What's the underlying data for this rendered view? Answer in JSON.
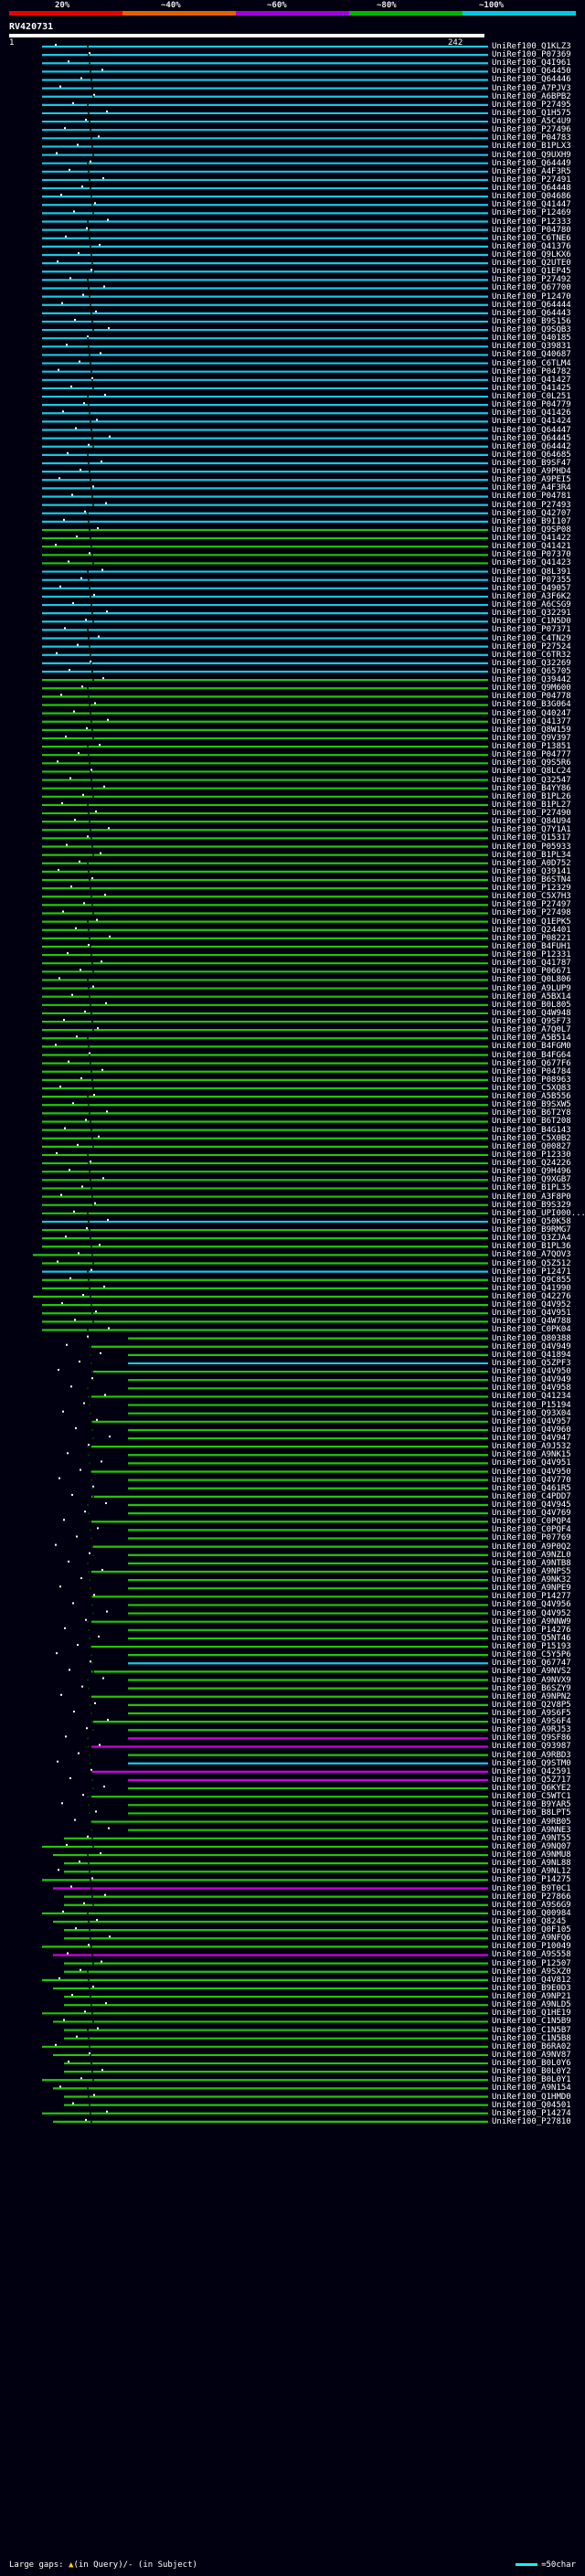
{
  "scale": {
    "ticks": [
      "20%",
      "~40%",
      "~60%",
      "~80%",
      "~100%"
    ],
    "colors": [
      "#e60000",
      "#e66000",
      "#a000e0",
      "#00b400",
      "#00c8e0"
    ]
  },
  "query": {
    "name": "RV420731",
    "start": "1",
    "end": "242"
  },
  "hits": [
    {
      "label": "UniRef100_Q1KLZ3",
      "color": "cyan"
    },
    {
      "label": "UniRef100_P07369",
      "color": "cyan"
    },
    {
      "label": "UniRef100_Q4I961",
      "color": "cyan"
    },
    {
      "label": "UniRef100_Q64450",
      "color": "cyan"
    },
    {
      "label": "UniRef100_Q64446",
      "color": "cyan"
    },
    {
      "label": "UniRef100_A7PJV3",
      "color": "cyan"
    },
    {
      "label": "UniRef100_A6BPB2",
      "color": "cyan"
    },
    {
      "label": "UniRef100_P27495",
      "color": "cyan"
    },
    {
      "label": "UniRef100_Q1H575",
      "color": "cyan"
    },
    {
      "label": "UniRef100_A5C4U9",
      "color": "cyan"
    },
    {
      "label": "UniRef100_P27496",
      "color": "cyan"
    },
    {
      "label": "UniRef100_P04783",
      "color": "cyan"
    },
    {
      "label": "UniRef100_B1PLX3",
      "color": "cyan"
    },
    {
      "label": "UniRef100_Q9UXH9",
      "color": "cyan"
    },
    {
      "label": "UniRef100_Q64449",
      "color": "cyan"
    },
    {
      "label": "UniRef100_A4F3R5",
      "color": "cyan"
    },
    {
      "label": "UniRef100_P27491",
      "color": "cyan"
    },
    {
      "label": "UniRef100_Q64448",
      "color": "cyan"
    },
    {
      "label": "UniRef100_Q04686",
      "color": "cyan"
    },
    {
      "label": "UniRef100_Q41447",
      "color": "cyan"
    },
    {
      "label": "UniRef100_P12469",
      "color": "cyan"
    },
    {
      "label": "UniRef100_P12333",
      "color": "cyan"
    },
    {
      "label": "UniRef100_P04780",
      "color": "cyan"
    },
    {
      "label": "UniRef100_C6TNE6",
      "color": "cyan"
    },
    {
      "label": "UniRef100_Q41376",
      "color": "cyan"
    },
    {
      "label": "UniRef100_Q9LKX6",
      "color": "cyan"
    },
    {
      "label": "UniRef100_Q2UTE0",
      "color": "cyan"
    },
    {
      "label": "UniRef100_Q1EP45",
      "color": "cyan"
    },
    {
      "label": "UniRef100_P27492",
      "color": "cyan"
    },
    {
      "label": "UniRef100_Q67700",
      "color": "cyan"
    },
    {
      "label": "UniRef100_P12470",
      "color": "cyan"
    },
    {
      "label": "UniRef100_Q64444",
      "color": "cyan"
    },
    {
      "label": "UniRef100_Q64443",
      "color": "cyan"
    },
    {
      "label": "UniRef100_B9S156",
      "color": "cyan"
    },
    {
      "label": "UniRef100_Q9SQB3",
      "color": "cyan"
    },
    {
      "label": "UniRef100_Q40185",
      "color": "cyan"
    },
    {
      "label": "UniRef100_Q39831",
      "color": "cyan"
    },
    {
      "label": "UniRef100_Q40687",
      "color": "cyan"
    },
    {
      "label": "UniRef100_C6TLM4",
      "color": "cyan"
    },
    {
      "label": "UniRef100_P04782",
      "color": "cyan"
    },
    {
      "label": "UniRef100_Q41427",
      "color": "cyan"
    },
    {
      "label": "UniRef100_Q41425",
      "color": "cyan"
    },
    {
      "label": "UniRef100_C0L251",
      "color": "cyan"
    },
    {
      "label": "UniRef100_P04779",
      "color": "cyan"
    },
    {
      "label": "UniRef100_Q41426",
      "color": "cyan"
    },
    {
      "label": "UniRef100_Q41424",
      "color": "cyan"
    },
    {
      "label": "UniRef100_Q64447",
      "color": "cyan"
    },
    {
      "label": "UniRef100_Q64445",
      "color": "cyan"
    },
    {
      "label": "UniRef100_Q64442",
      "color": "cyan"
    },
    {
      "label": "UniRef100_Q64685",
      "color": "cyan"
    },
    {
      "label": "UniRef100_B9SF47",
      "color": "cyan"
    },
    {
      "label": "UniRef100_A9PHD4",
      "color": "cyan"
    },
    {
      "label": "UniRef100_A9PEI5",
      "color": "cyan"
    },
    {
      "label": "UniRef100_A4F3R4",
      "color": "cyan"
    },
    {
      "label": "UniRef100_P04781",
      "color": "cyan"
    },
    {
      "label": "UniRef100_P27493",
      "color": "cyan"
    },
    {
      "label": "UniRef100_Q42707",
      "color": "cyan"
    },
    {
      "label": "UniRef100_B9I107",
      "color": "cyan"
    },
    {
      "label": "UniRef100_Q9SP08",
      "color": "green"
    },
    {
      "label": "UniRef100_Q41422",
      "color": "green"
    },
    {
      "label": "UniRef100_Q41421",
      "color": "green"
    },
    {
      "label": "UniRef100_P07370",
      "color": "green"
    },
    {
      "label": "UniRef100_Q41423",
      "color": "green"
    },
    {
      "label": "UniRef100_Q8L391",
      "color": "cyan"
    },
    {
      "label": "UniRef100_P07355",
      "color": "cyan"
    },
    {
      "label": "UniRef100_Q49057",
      "color": "cyan"
    },
    {
      "label": "UniRef100_A3F6K2",
      "color": "cyan"
    },
    {
      "label": "UniRef100_A6CSG9",
      "color": "cyan"
    },
    {
      "label": "UniRef100_Q32291",
      "color": "cyan"
    },
    {
      "label": "UniRef100_C1N5D0",
      "color": "cyan"
    },
    {
      "label": "UniRef100_P07371",
      "color": "cyan"
    },
    {
      "label": "UniRef100_C4TN29",
      "color": "cyan"
    },
    {
      "label": "UniRef100_P27524",
      "color": "cyan"
    },
    {
      "label": "UniRef100_C6TR32",
      "color": "cyan"
    },
    {
      "label": "UniRef100_Q32269",
      "color": "cyan"
    },
    {
      "label": "UniRef100_Q65705",
      "color": "cyan"
    },
    {
      "label": "UniRef100_Q39442",
      "color": "green"
    },
    {
      "label": "UniRef100_Q9M600",
      "color": "green"
    },
    {
      "label": "UniRef100_P04778",
      "color": "green"
    },
    {
      "label": "UniRef100_B3G064",
      "color": "green"
    },
    {
      "label": "UniRef100_Q40247",
      "color": "green"
    },
    {
      "label": "UniRef100_Q41377",
      "color": "green"
    },
    {
      "label": "UniRef100_Q8W159",
      "color": "green"
    },
    {
      "label": "UniRef100_Q9V397",
      "color": "green"
    },
    {
      "label": "UniRef100_P13851",
      "color": "green"
    },
    {
      "label": "UniRef100_P04777",
      "color": "green"
    },
    {
      "label": "UniRef100_Q9S5R6",
      "color": "green"
    },
    {
      "label": "UniRef100_Q8LC24",
      "color": "green"
    },
    {
      "label": "UniRef100_Q32547",
      "color": "green"
    },
    {
      "label": "UniRef100_B4YY86",
      "color": "green"
    },
    {
      "label": "UniRef100_B1PL26",
      "color": "green"
    },
    {
      "label": "UniRef100_B1PL27",
      "color": "green"
    },
    {
      "label": "UniRef100_P27490",
      "color": "green"
    },
    {
      "label": "UniRef100_Q84U94",
      "color": "green"
    },
    {
      "label": "UniRef100_Q7Y1A1",
      "color": "green"
    },
    {
      "label": "UniRef100_Q15317",
      "color": "green"
    },
    {
      "label": "UniRef100_P05933",
      "color": "green"
    },
    {
      "label": "UniRef100_B1PL34",
      "color": "green"
    },
    {
      "label": "UniRef100_A0D752",
      "color": "green"
    },
    {
      "label": "UniRef100_Q39141",
      "color": "green"
    },
    {
      "label": "UniRef100_B6STN4",
      "color": "green"
    },
    {
      "label": "UniRef100_P12329",
      "color": "green"
    },
    {
      "label": "UniRef100_C5X7H3",
      "color": "green"
    },
    {
      "label": "UniRef100_P27497",
      "color": "green"
    },
    {
      "label": "UniRef100_P27498",
      "color": "green"
    },
    {
      "label": "UniRef100_Q1EPK5",
      "color": "green"
    },
    {
      "label": "UniRef100_Q24401",
      "color": "green"
    },
    {
      "label": "UniRef100_P08221",
      "color": "green"
    },
    {
      "label": "UniRef100_B4FUH1",
      "color": "green"
    },
    {
      "label": "UniRef100_P12331",
      "color": "green"
    },
    {
      "label": "UniRef100_Q41787",
      "color": "green"
    },
    {
      "label": "UniRef100_P06671",
      "color": "green"
    },
    {
      "label": "UniRef100_Q0L806",
      "color": "green"
    },
    {
      "label": "UniRef100_A9LUP9",
      "color": "green"
    },
    {
      "label": "UniRef100_A5BX14",
      "color": "green"
    },
    {
      "label": "UniRef100_B0L805",
      "color": "green"
    },
    {
      "label": "UniRef100_Q4W948",
      "color": "green"
    },
    {
      "label": "UniRef100_Q9SF73",
      "color": "green"
    },
    {
      "label": "UniRef100_A7Q0L7",
      "color": "green"
    },
    {
      "label": "UniRef100_A5B514",
      "color": "green"
    },
    {
      "label": "UniRef100_B4FGM0",
      "color": "green"
    },
    {
      "label": "UniRef100_B4FG64",
      "color": "green"
    },
    {
      "label": "UniRef100_Q677F6",
      "color": "green"
    },
    {
      "label": "UniRef100_P04784",
      "color": "green"
    },
    {
      "label": "UniRef100_P08963",
      "color": "green"
    },
    {
      "label": "UniRef100_C5XQ83",
      "color": "green"
    },
    {
      "label": "UniRef100_A5B556",
      "color": "green"
    },
    {
      "label": "UniRef100_B9SXW5",
      "color": "green"
    },
    {
      "label": "UniRef100_B6T2Y8",
      "color": "green"
    },
    {
      "label": "UniRef100_B6T208",
      "color": "green"
    },
    {
      "label": "UniRef100_B4G143",
      "color": "green"
    },
    {
      "label": "UniRef100_C5X0B2",
      "color": "green"
    },
    {
      "label": "UniRef100_Q00827",
      "color": "green"
    },
    {
      "label": "UniRef100_P12330",
      "color": "green"
    },
    {
      "label": "UniRef100_Q24226",
      "color": "green"
    },
    {
      "label": "UniRef100_Q9H496",
      "color": "green"
    },
    {
      "label": "UniRef100_Q9XGB7",
      "color": "green"
    },
    {
      "label": "UniRef100_B1PL35",
      "color": "green"
    },
    {
      "label": "UniRef100_A3F8P0",
      "color": "green"
    },
    {
      "label": "UniRef100_B9S329",
      "color": "green"
    },
    {
      "label": "UniRef100_UPI000...",
      "color": "green"
    },
    {
      "label": "UniRef100_Q50K58",
      "color": "cyan"
    },
    {
      "label": "UniRef100_B9RMG7",
      "color": "green"
    },
    {
      "label": "UniRef100_Q3ZJA4",
      "color": "green"
    },
    {
      "label": "UniRef100_B1PL36",
      "color": "green"
    },
    {
      "label": "UniRef100_A7QOV3",
      "color": "green"
    },
    {
      "label": "UniRef100_Q5Z512",
      "color": "green"
    },
    {
      "label": "UniRef100_P12471",
      "color": "cyan"
    },
    {
      "label": "UniRef100_Q9C855",
      "color": "green"
    },
    {
      "label": "UniRef100_Q41990",
      "color": "green"
    },
    {
      "label": "UniRef100_Q42276",
      "color": "green"
    },
    {
      "label": "UniRef100_Q4V952",
      "color": "green"
    },
    {
      "label": "UniRef100_Q4V951",
      "color": "green"
    },
    {
      "label": "UniRef100_Q4W788",
      "color": "green"
    },
    {
      "label": "UniRef100_C0PK04",
      "color": "green"
    },
    {
      "label": "UniRef100_Q80388",
      "color": "green"
    },
    {
      "label": "UniRef100_Q4V949",
      "color": "green"
    },
    {
      "label": "UniRef100_Q41894",
      "color": "green"
    },
    {
      "label": "UniRef100_Q5ZPF3",
      "color": "cyan"
    },
    {
      "label": "UniRef100_Q4V950",
      "color": "green"
    },
    {
      "label": "UniRef100_Q4V949",
      "color": "green"
    },
    {
      "label": "UniRef100_Q4V958",
      "color": "green"
    },
    {
      "label": "UniRef100_Q41234",
      "color": "green"
    },
    {
      "label": "UniRef100_P15194",
      "color": "green"
    },
    {
      "label": "UniRef100_Q93X04",
      "color": "green"
    },
    {
      "label": "UniRef100_Q4V957",
      "color": "green"
    },
    {
      "label": "UniRef100_Q4V960",
      "color": "green"
    },
    {
      "label": "UniRef100_Q4V947",
      "color": "green"
    },
    {
      "label": "UniRef100_A9J532",
      "color": "green"
    },
    {
      "label": "UniRef100_A9NK15",
      "color": "green"
    },
    {
      "label": "UniRef100_Q4V951",
      "color": "green"
    },
    {
      "label": "UniRef100_Q4V950",
      "color": "green"
    },
    {
      "label": "UniRef100_Q4V770",
      "color": "green"
    },
    {
      "label": "UniRef100_Q461R5",
      "color": "green"
    },
    {
      "label": "UniRef100_C4PDD7",
      "color": "green"
    },
    {
      "label": "UniRef100_Q4V945",
      "color": "green"
    },
    {
      "label": "UniRef100_Q4V769",
      "color": "green"
    },
    {
      "label": "UniRef100_C0PQP4",
      "color": "green"
    },
    {
      "label": "UniRef100_C0PQF4",
      "color": "green"
    },
    {
      "label": "UniRef100_P07769",
      "color": "green"
    },
    {
      "label": "UniRef100_A9P0Q2",
      "color": "green"
    },
    {
      "label": "UniRef100_A9NZL0",
      "color": "green"
    },
    {
      "label": "UniRef100_A9NTB8",
      "color": "green"
    },
    {
      "label": "UniRef100_A9NPS5",
      "color": "green"
    },
    {
      "label": "UniRef100_A9NK32",
      "color": "green"
    },
    {
      "label": "UniRef100_A9NPE9",
      "color": "green"
    },
    {
      "label": "UniRef100_P14277",
      "color": "green"
    },
    {
      "label": "UniRef100_Q4V956",
      "color": "green"
    },
    {
      "label": "UniRef100_Q4V952",
      "color": "green"
    },
    {
      "label": "UniRef100_A9NNW9",
      "color": "green"
    },
    {
      "label": "UniRef100_P14276",
      "color": "green"
    },
    {
      "label": "UniRef100_Q5NT46",
      "color": "green"
    },
    {
      "label": "UniRef100_P15193",
      "color": "green"
    },
    {
      "label": "UniRef100_C5Y5P6",
      "color": "green"
    },
    {
      "label": "UniRef100_Q67747",
      "color": "cyan"
    },
    {
      "label": "UniRef100_A9NVS2",
      "color": "green"
    },
    {
      "label": "UniRef100_A9NVX9",
      "color": "green"
    },
    {
      "label": "UniRef100_B6SZY9",
      "color": "green"
    },
    {
      "label": "UniRef100_A9NPN2",
      "color": "green"
    },
    {
      "label": "UniRef100_Q2V8P5",
      "color": "green"
    },
    {
      "label": "UniRef100_A9S6F5",
      "color": "green"
    },
    {
      "label": "UniRef100_A9S6F4",
      "color": "green"
    },
    {
      "label": "UniRef100_A9RJ53",
      "color": "green"
    },
    {
      "label": "UniRef100_Q9SF86",
      "color": "magenta"
    },
    {
      "label": "UniRef100_Q93987",
      "color": "magenta"
    },
    {
      "label": "UniRef100_A9RBD3",
      "color": "green"
    },
    {
      "label": "UniRef100_Q9STM0",
      "color": "cyan"
    },
    {
      "label": "UniRef100_Q42591",
      "color": "magenta"
    },
    {
      "label": "UniRef100_Q5Z717",
      "color": "magenta"
    },
    {
      "label": "UniRef100_Q6KYE2",
      "color": "green"
    },
    {
      "label": "UniRef100_C5WTC1",
      "color": "green"
    },
    {
      "label": "UniRef100_B9YAR5",
      "color": "green"
    },
    {
      "label": "UniRef100_B8LPT5",
      "color": "green"
    },
    {
      "label": "UniRef100_A9RB05",
      "color": "green"
    },
    {
      "label": "UniRef100_A9NNE3",
      "color": "green"
    },
    {
      "label": "UniRef100_A9NT55",
      "color": "green"
    },
    {
      "label": "UniRef100_A9NQ07",
      "color": "green"
    },
    {
      "label": "UniRef100_A9NMU8",
      "color": "green"
    },
    {
      "label": "UniRef100_A9NL88",
      "color": "green"
    },
    {
      "label": "UniRef100_A9NL12",
      "color": "green"
    },
    {
      "label": "UniRef100_P14275",
      "color": "green"
    },
    {
      "label": "UniRef100_B9T0C1",
      "color": "magenta"
    },
    {
      "label": "UniRef100_P27866",
      "color": "green"
    },
    {
      "label": "UniRef100_A9S6G9",
      "color": "green"
    },
    {
      "label": "UniRef100_Q00984",
      "color": "green"
    },
    {
      "label": "UniRef100_Q8245",
      "color": "green"
    },
    {
      "label": "UniRef100_Q0F105",
      "color": "green"
    },
    {
      "label": "UniRef100_A9NFQ6",
      "color": "green"
    },
    {
      "label": "UniRef100_P10049",
      "color": "green"
    },
    {
      "label": "UniRef100_A9S558",
      "color": "magenta"
    },
    {
      "label": "UniRef100_P12507",
      "color": "green"
    },
    {
      "label": "UniRef100_A9SXZ0",
      "color": "green"
    },
    {
      "label": "UniRef100_Q4V812",
      "color": "green"
    },
    {
      "label": "UniRef100_B9E0D3",
      "color": "green"
    },
    {
      "label": "UniRef100_A9NP21",
      "color": "green"
    },
    {
      "label": "UniRef100_A9NLD5",
      "color": "green"
    },
    {
      "label": "UniRef100_Q1HE19",
      "color": "green"
    },
    {
      "label": "UniRef100_C1N5B9",
      "color": "green"
    },
    {
      "label": "UniRef100_C1N5B7",
      "color": "green"
    },
    {
      "label": "UniRef100_C1N5B8",
      "color": "green"
    },
    {
      "label": "UniRef100_B6RA02",
      "color": "green"
    },
    {
      "label": "UniRef100_A9NV87",
      "color": "green"
    },
    {
      "label": "UniRef100_B0L0Y6",
      "color": "green"
    },
    {
      "label": "UniRef100_B0L0Y2",
      "color": "green"
    },
    {
      "label": "UniRef100_B0L0Y1",
      "color": "green"
    },
    {
      "label": "UniRef100_A9N154",
      "color": "green"
    },
    {
      "label": "UniRef100_Q1HMD0",
      "color": "green"
    },
    {
      "label": "UniRef100_Q04501",
      "color": "green"
    },
    {
      "label": "UniRef100_P14274",
      "color": "green"
    },
    {
      "label": "UniRef100_P27810",
      "color": "green"
    }
  ],
  "legend": {
    "large_gaps": "Large gaps:",
    "in_query": "(in Query)",
    "slash": "/",
    "dash": "-",
    "in_subject": "(in Subject)",
    "scale_note": "=50char"
  }
}
